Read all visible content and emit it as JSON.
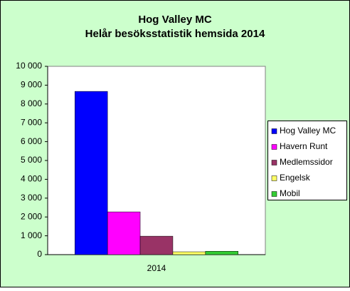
{
  "chart_data": {
    "type": "bar",
    "title": "Hog Valley MC",
    "subtitle": "Helår besöksstatistik hemsida 2014",
    "categories": [
      "2014"
    ],
    "series": [
      {
        "name": "Hog Valley MC",
        "color": "#0000ff",
        "values": [
          8670
        ]
      },
      {
        "name": "Havern Runt",
        "color": "#ff00ff",
        "values": [
          2270
        ]
      },
      {
        "name": "Medlemssidor",
        "color": "#993366",
        "values": [
          980
        ]
      },
      {
        "name": "Engelsk",
        "color": "#ffff66",
        "values": [
          150
        ]
      },
      {
        "name": "Mobil",
        "color": "#33cc33",
        "values": [
          180
        ]
      }
    ],
    "ylim": [
      0,
      10000
    ],
    "yticks": [
      0,
      {
        "value": 1000,
        "label": "1 000"
      },
      {
        "value": 2000,
        "label": "2 000"
      },
      {
        "value": 3000,
        "label": "3 000"
      },
      {
        "value": 4000,
        "label": "4 000"
      },
      {
        "value": 5000,
        "label": "5 000"
      },
      {
        "value": 6000,
        "label": "6 000"
      },
      {
        "value": 7000,
        "label": "7 000"
      },
      {
        "value": 8000,
        "label": "8 000"
      },
      {
        "value": 9000,
        "label": "9 000"
      },
      {
        "value": 10000,
        "label": "10 000"
      }
    ],
    "grid": false,
    "legend": "right"
  }
}
